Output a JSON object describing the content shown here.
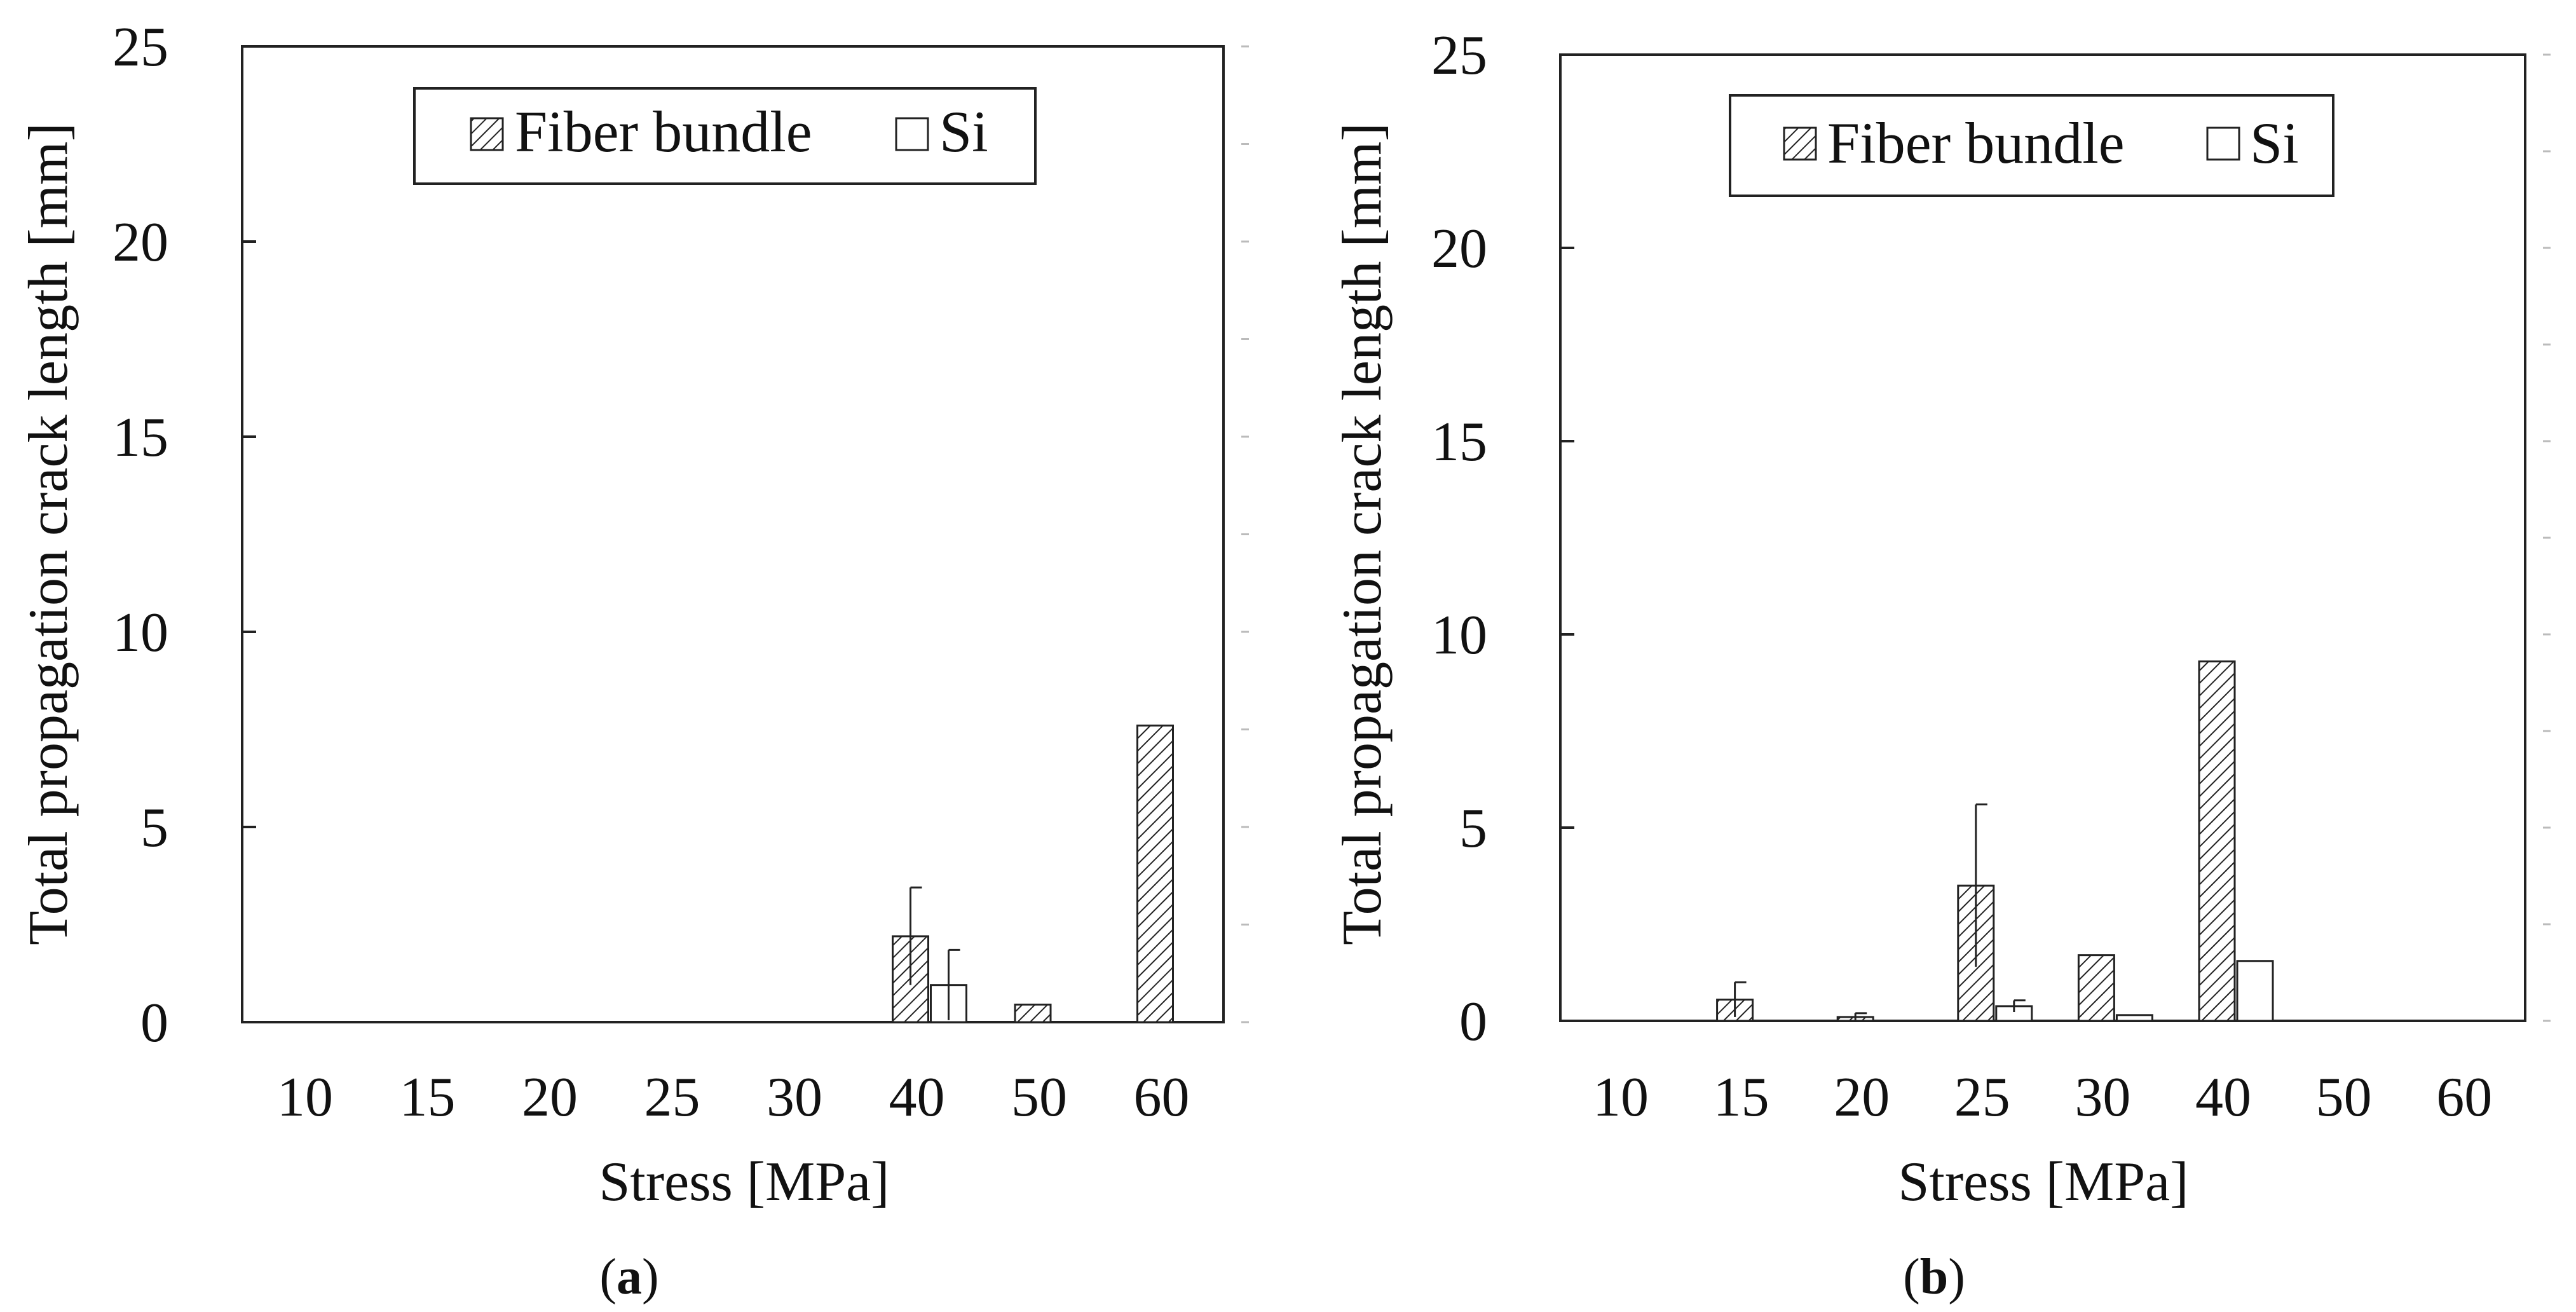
{
  "figure": {
    "panels": [
      {
        "caption": "a",
        "legend": {
          "fiber_label": "Fiber bundle",
          "si_label": "Si"
        }
      },
      {
        "caption": "b",
        "legend": {
          "fiber_label": "Fiber bundle",
          "si_label": "Si"
        }
      }
    ]
  },
  "chart_data": [
    {
      "type": "bar",
      "title": "",
      "xlabel": "Stress [MPa]",
      "ylabel": "Total propagation crack length [mm]",
      "ylim": [
        0,
        25
      ],
      "yticks": [
        0,
        5,
        10,
        15,
        20,
        25
      ],
      "categories": [
        "10",
        "15",
        "20",
        "25",
        "30",
        "40",
        "50",
        "60"
      ],
      "grid": false,
      "legend_position": "top",
      "series": [
        {
          "name": "Fiber bundle",
          "pattern": "hatched",
          "values": [
            0,
            0,
            0,
            0,
            0,
            2.2,
            0.45,
            7.6
          ],
          "error": [
            0,
            0,
            0,
            0,
            0,
            1.25,
            0,
            0
          ]
        },
        {
          "name": "Si",
          "pattern": "white",
          "values": [
            0,
            0,
            0,
            0,
            0,
            0.95,
            0,
            0
          ],
          "error": [
            0,
            0,
            0,
            0,
            0,
            0.9,
            0,
            0
          ]
        }
      ]
    },
    {
      "type": "bar",
      "title": "",
      "xlabel": "Stress [MPa]",
      "ylabel": "Total propagation crack length [mm]",
      "ylim": [
        0,
        25
      ],
      "yticks": [
        0,
        5,
        10,
        15,
        20,
        25
      ],
      "categories": [
        "10",
        "15",
        "20",
        "25",
        "30",
        "40",
        "50",
        "60"
      ],
      "grid": false,
      "legend_position": "top",
      "series": [
        {
          "name": "Fiber bundle",
          "pattern": "hatched",
          "values": [
            0,
            0.55,
            0.1,
            3.5,
            1.7,
            9.3,
            0,
            0
          ],
          "error": [
            0,
            0.45,
            0.1,
            2.1,
            0,
            0,
            0,
            0
          ]
        },
        {
          "name": "Si",
          "pattern": "white",
          "values": [
            0,
            0,
            0,
            0.38,
            0.15,
            1.55,
            0,
            0
          ],
          "error": [
            0,
            0,
            0,
            0.15,
            0,
            0,
            0,
            0
          ]
        }
      ]
    }
  ]
}
